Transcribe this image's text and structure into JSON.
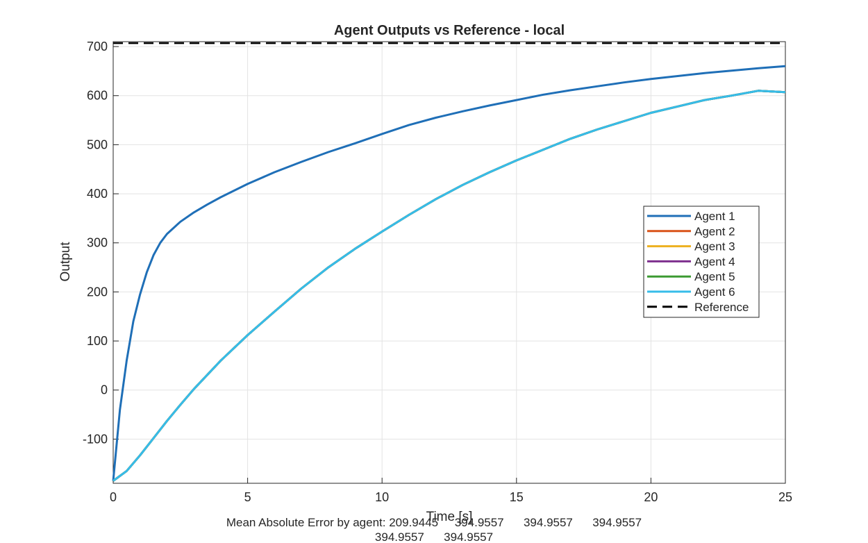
{
  "chart_data": {
    "type": "line",
    "title": "Agent Outputs vs Reference - local",
    "xlabel": "Time [s]",
    "ylabel": "Output",
    "xlim": [
      0,
      25
    ],
    "ylim": [
      -190,
      710
    ],
    "xticks": [
      0,
      5,
      10,
      15,
      20,
      25
    ],
    "yticks": [
      -100,
      0,
      100,
      200,
      300,
      400,
      500,
      600,
      700
    ],
    "grid": true,
    "legend_position": "right",
    "series": [
      {
        "name": "Agent 1",
        "color": "#1f6fb7",
        "x": [
          0,
          0.25,
          0.5,
          0.75,
          1,
          1.25,
          1.5,
          1.75,
          2,
          2.5,
          3,
          3.5,
          4,
          5,
          6,
          7,
          8,
          9,
          10,
          11,
          12,
          13,
          14,
          15,
          16,
          17,
          18,
          19,
          20,
          21,
          22,
          23,
          24,
          25
        ],
        "y": [
          -185,
          -40,
          60,
          140,
          195,
          240,
          275,
          300,
          318,
          343,
          362,
          378,
          393,
          420,
          444,
          465,
          485,
          503,
          522,
          540,
          555,
          568,
          580,
          591,
          602,
          611,
          619,
          627,
          634,
          640,
          646,
          651,
          656,
          660
        ]
      },
      {
        "name": "Agent 2",
        "color": "#d95319",
        "x": [
          0,
          0.5,
          1,
          1.5,
          2,
          2.5,
          3,
          4,
          5,
          6,
          7,
          8,
          9,
          10,
          11,
          12,
          13,
          14,
          15,
          16,
          17,
          18,
          19,
          20,
          21,
          22,
          23,
          24,
          25
        ],
        "y": [
          -185,
          -165,
          -133,
          -98,
          -63,
          -30,
          2,
          60,
          112,
          160,
          207,
          250,
          288,
          323,
          357,
          389,
          418,
          444,
          468,
          490,
          512,
          531,
          548,
          565,
          578,
          591,
          600,
          610,
          607
        ]
      },
      {
        "name": "Agent 3",
        "color": "#edb120",
        "x": [
          0,
          0.5,
          1,
          1.5,
          2,
          2.5,
          3,
          4,
          5,
          6,
          7,
          8,
          9,
          10,
          11,
          12,
          13,
          14,
          15,
          16,
          17,
          18,
          19,
          20,
          21,
          22,
          23,
          24,
          25
        ],
        "y": [
          -185,
          -165,
          -133,
          -98,
          -63,
          -30,
          2,
          60,
          112,
          160,
          207,
          250,
          288,
          323,
          357,
          389,
          418,
          444,
          468,
          490,
          512,
          531,
          548,
          565,
          578,
          591,
          600,
          610,
          607
        ]
      },
      {
        "name": "Agent 4",
        "color": "#7e2f8e",
        "x": [
          0,
          0.5,
          1,
          1.5,
          2,
          2.5,
          3,
          4,
          5,
          6,
          7,
          8,
          9,
          10,
          11,
          12,
          13,
          14,
          15,
          16,
          17,
          18,
          19,
          20,
          21,
          22,
          23,
          24,
          25
        ],
        "y": [
          -185,
          -165,
          -133,
          -98,
          -63,
          -30,
          2,
          60,
          112,
          160,
          207,
          250,
          288,
          323,
          357,
          389,
          418,
          444,
          468,
          490,
          512,
          531,
          548,
          565,
          578,
          591,
          600,
          610,
          607
        ]
      },
      {
        "name": "Agent 5",
        "color": "#3c9a32",
        "x": [
          0,
          0.5,
          1,
          1.5,
          2,
          2.5,
          3,
          4,
          5,
          6,
          7,
          8,
          9,
          10,
          11,
          12,
          13,
          14,
          15,
          16,
          17,
          18,
          19,
          20,
          21,
          22,
          23,
          24,
          25
        ],
        "y": [
          -185,
          -165,
          -133,
          -98,
          -63,
          -30,
          2,
          60,
          112,
          160,
          207,
          250,
          288,
          323,
          357,
          389,
          418,
          444,
          468,
          490,
          512,
          531,
          548,
          565,
          578,
          591,
          600,
          610,
          607
        ]
      },
      {
        "name": "Agent 6",
        "color": "#36bce9",
        "x": [
          0,
          0.5,
          1,
          1.5,
          2,
          2.5,
          3,
          4,
          5,
          6,
          7,
          8,
          9,
          10,
          11,
          12,
          13,
          14,
          15,
          16,
          17,
          18,
          19,
          20,
          21,
          22,
          23,
          24,
          25
        ],
        "y": [
          -185,
          -165,
          -133,
          -98,
          -63,
          -30,
          2,
          60,
          112,
          160,
          207,
          250,
          288,
          323,
          357,
          389,
          418,
          444,
          468,
          490,
          512,
          531,
          548,
          565,
          578,
          591,
          600,
          610,
          607
        ]
      },
      {
        "name": "Reference",
        "color": "#000000",
        "dashed": true,
        "x": [
          0,
          25
        ],
        "y": [
          707,
          707
        ]
      }
    ],
    "annotation": {
      "line1": "Mean Absolute Error by agent: 209.9445     394.9557      394.9557      394.9557",
      "line2": "394.9557      394.9557"
    }
  }
}
